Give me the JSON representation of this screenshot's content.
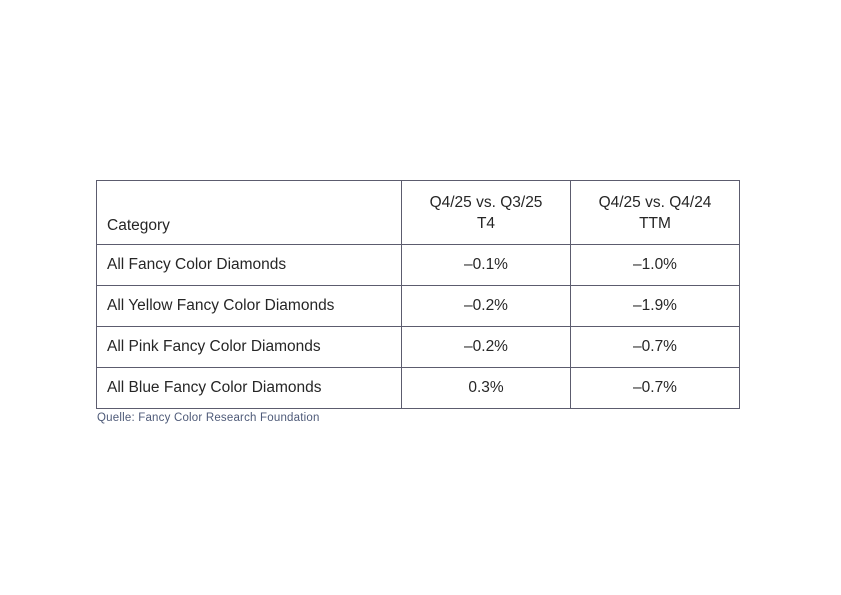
{
  "table": {
    "header": {
      "category_label": "Category",
      "col1_line1": "Q4/25 vs. Q3/25",
      "col1_line2": "T4",
      "col2_line1": "Q4/25 vs. Q4/24",
      "col2_line2": "TTM"
    },
    "rows": [
      {
        "category": "All Fancy Color Diamonds",
        "vs_q3_25_t4": "–0.1%",
        "vs_q4_24_ttm": "–1.0%"
      },
      {
        "category": "All Yellow Fancy Color Diamonds",
        "vs_q3_25_t4": "–0.2%",
        "vs_q4_24_ttm": "–1.9%"
      },
      {
        "category": "All Pink Fancy Color Diamonds",
        "vs_q3_25_t4": "–0.2%",
        "vs_q4_24_ttm": "–0.7%"
      },
      {
        "category": "All Blue Fancy Color Diamonds",
        "vs_q3_25_t4": "0.3%",
        "vs_q4_24_ttm": "–0.7%"
      }
    ]
  },
  "caption": "Quelle: Fancy Color Research Foundation",
  "colors": {
    "border": "#5c5c6e",
    "text": "#262626",
    "caption": "#4e5a78"
  }
}
